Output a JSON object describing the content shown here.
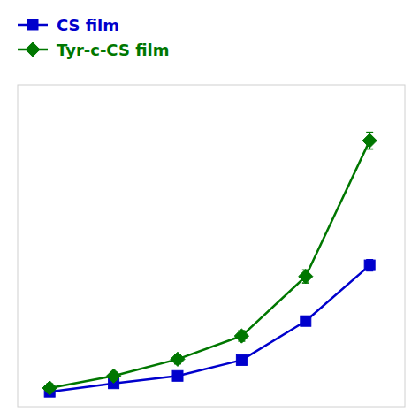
{
  "chart_data": {
    "type": "line",
    "x": [
      1,
      2,
      3,
      4,
      5,
      6
    ],
    "xlim": [
      0.5,
      6.55
    ],
    "ylim": [
      0.2,
      17.5
    ],
    "tick_labels": false,
    "grid": false,
    "legend": "upper left",
    "series": [
      {
        "name": "CS film",
        "color": "#0000cc",
        "marker": "square",
        "values": [
          1.0,
          1.45,
          1.85,
          2.7,
          4.8,
          7.8
        ],
        "errors": [
          0.18,
          0.15,
          0.15,
          0.2,
          0.22,
          0.3
        ]
      },
      {
        "name": "Tyr-c-CS film",
        "color": "#007700",
        "marker": "diamond",
        "values": [
          1.2,
          1.85,
          2.75,
          4.0,
          7.2,
          14.5
        ],
        "errors": [
          0.22,
          0.2,
          0.25,
          0.28,
          0.35,
          0.45
        ]
      }
    ]
  }
}
